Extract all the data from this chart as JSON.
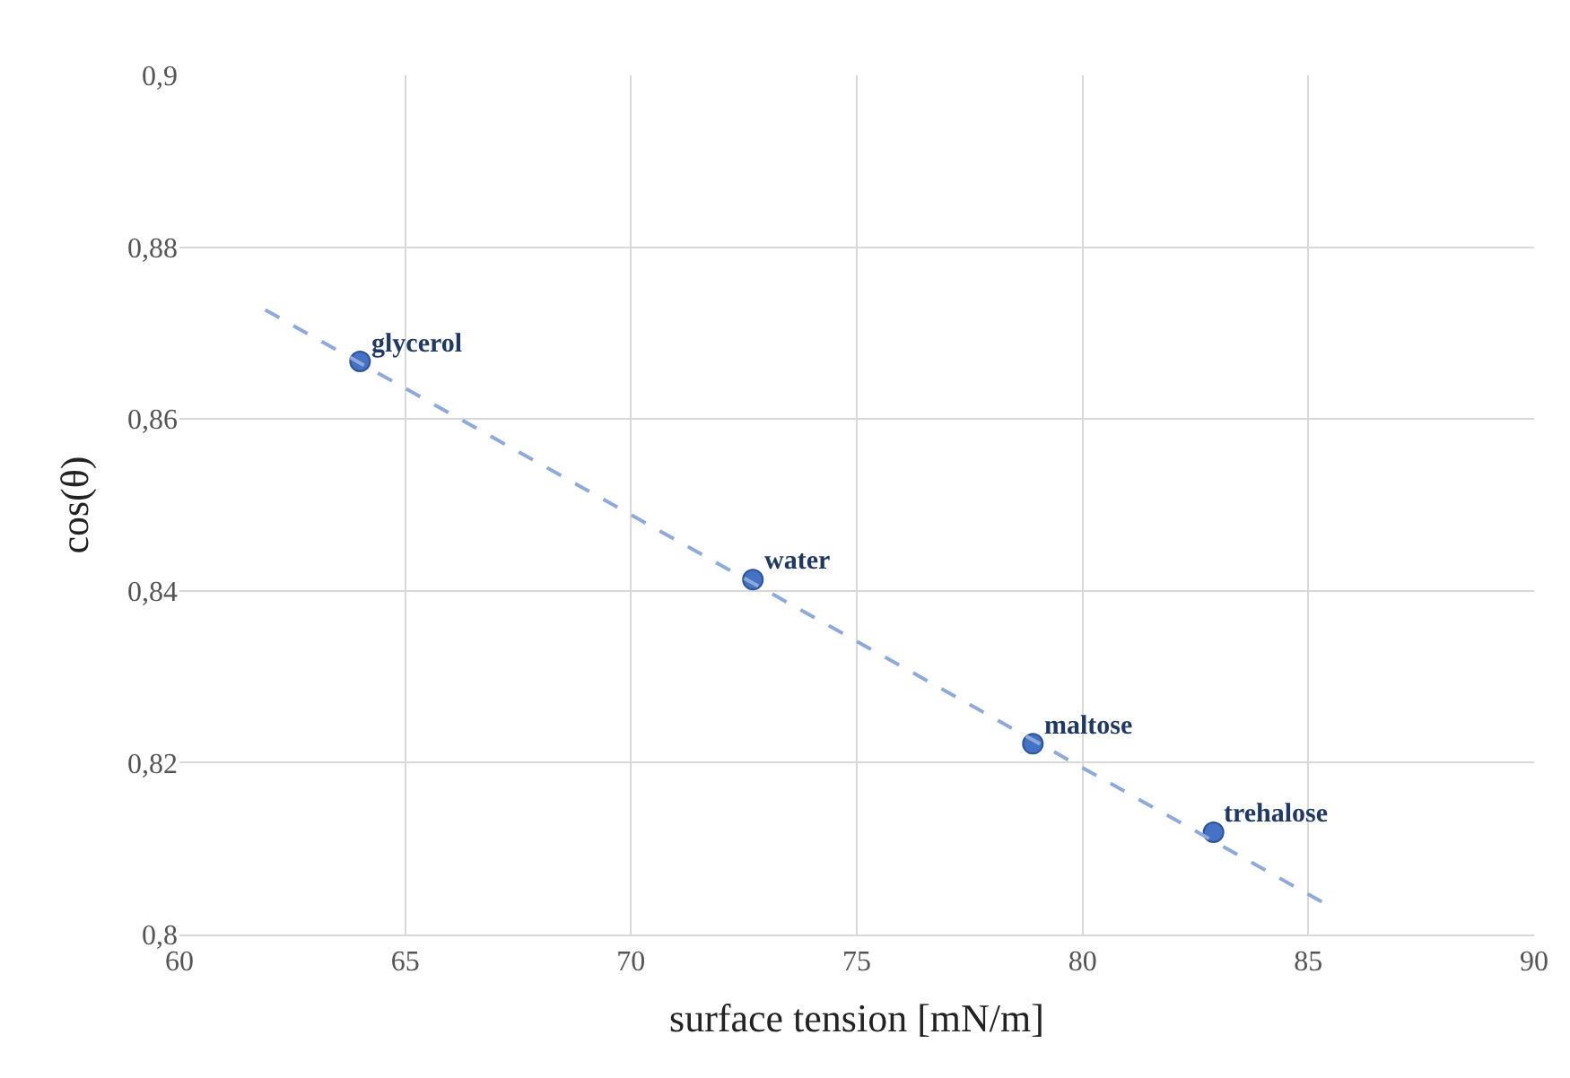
{
  "chart_data": {
    "type": "scatter",
    "xlabel": "surface tension [mN/m]",
    "ylabel": "cos(θ)",
    "series": [
      {
        "color": "#4472c4",
        "marker": "circle",
        "x": [
          64.0,
          72.7,
          78.9,
          82.9
        ],
        "values": [
          0.8667,
          0.8413,
          0.8222,
          0.8119
        ]
      },
      {
        "type": "line",
        "color": "#8eaadb",
        "line_style": "dashed",
        "marker": "none",
        "x": [
          61.9,
          85.3
        ],
        "values": [
          0.8727,
          0.8038
        ]
      }
    ],
    "annotations": [
      {
        "text": "glycerol",
        "x": 64.0,
        "y": 0.8667
      },
      {
        "text": "water",
        "x": 72.7,
        "y": 0.8413
      },
      {
        "text": "maltose",
        "x": 78.9,
        "y": 0.8222
      },
      {
        "text": "trehalose",
        "x": 82.9,
        "y": 0.8119
      }
    ],
    "xlim": [
      60,
      90
    ],
    "xticks": [
      60,
      65,
      70,
      75,
      80,
      85,
      90
    ],
    "ylim": [
      0.8,
      0.9
    ],
    "yticks": [
      {
        "value": 0.8,
        "label": "0,8"
      },
      {
        "value": 0.82,
        "label": "0,82"
      },
      {
        "value": 0.84,
        "label": "0,84"
      },
      {
        "value": 0.86,
        "label": "0,86"
      },
      {
        "value": 0.88,
        "label": "0,88"
      },
      {
        "value": 0.9,
        "label": "0,9"
      }
    ],
    "grid": true
  }
}
